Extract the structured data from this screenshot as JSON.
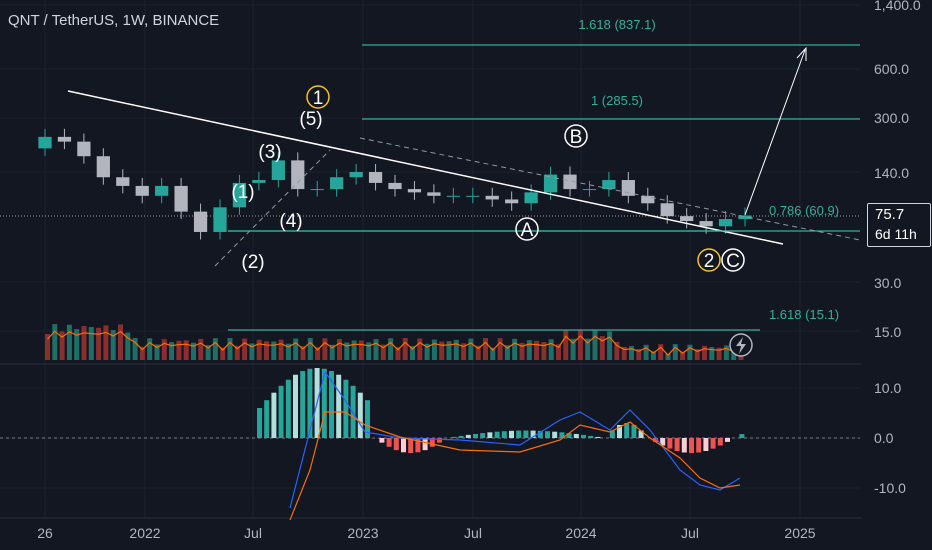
{
  "header": {
    "title": "QNT / TetherUS, 1W, BINANCE"
  },
  "price_box": {
    "price": "75.7",
    "countdown": "6d 11h"
  },
  "colors": {
    "up": "#26a69a",
    "down": "#ef5350",
    "bg": "#131722",
    "fib": "#2bb39a",
    "trend": "#ffffff",
    "circle1": "#f5c518",
    "ema": "#ff6d00",
    "macd": "#2962ff",
    "signal": "#ff6d00"
  },
  "icons": [
    "lightning-icon"
  ],
  "chart_data": {
    "type": "candlestick",
    "symbol": "QNT / TetherUS",
    "interval": "1W",
    "exchange": "BINANCE",
    "x_ticks": [
      "26",
      "2022",
      "Jul",
      "2023",
      "Jul",
      "2024",
      "Jul",
      "2025"
    ],
    "price_axis": {
      "scale": "log",
      "ticks": [
        "1,400.0",
        "600.0",
        "300.0",
        "140.0"
      ]
    },
    "volume_axis": {
      "ticks": [
        "30.0",
        "15.0"
      ]
    },
    "macd_axis": {
      "ticks": [
        "10.0",
        "0.0",
        "-10.0"
      ]
    },
    "last_price": 75.7,
    "fib_levels": [
      {
        "label": "1.618 (837.1)",
        "value": 837.1
      },
      {
        "label": "1 (285.5)",
        "value": 285.5
      },
      {
        "label": "0.786 (60.9)",
        "value": 60.9
      }
    ],
    "volume_fib": {
      "label": "1.618 (15.1)",
      "value": 15.1
    },
    "wave_labels": [
      {
        "label": "1",
        "circled": true,
        "color": "yellow"
      },
      {
        "label": "(1)"
      },
      {
        "label": "(2)"
      },
      {
        "label": "(3)"
      },
      {
        "label": "(4)"
      },
      {
        "label": "(5)"
      },
      {
        "label": "A",
        "circled": true
      },
      {
        "label": "B",
        "circled": true
      },
      {
        "label": "2",
        "circled": true,
        "color": "yellow"
      },
      {
        "label": "C",
        "circled": true
      }
    ],
    "price_series": [
      {
        "x": "2021-10",
        "close": 230
      },
      {
        "x": "2021-11",
        "close": 215
      },
      {
        "x": "2021-12",
        "close": 175
      },
      {
        "x": "2022-01",
        "close": 130
      },
      {
        "x": "2022-02",
        "close": 115
      },
      {
        "x": "2022-03",
        "close": 100
      },
      {
        "x": "2022-04",
        "close": 115
      },
      {
        "x": "2022-05",
        "close": 80
      },
      {
        "x": "2022-06",
        "close": 60
      },
      {
        "x": "2022-07",
        "close": 85
      },
      {
        "x": "2022-08",
        "close": 120
      },
      {
        "x": "2022-09",
        "close": 125
      },
      {
        "x": "2022-10",
        "close": 165
      },
      {
        "x": "2022-11",
        "close": 110
      },
      {
        "x": "2022-12",
        "close": 110
      },
      {
        "x": "2023-01",
        "close": 130
      },
      {
        "x": "2023-02",
        "close": 140
      },
      {
        "x": "2023-03",
        "close": 120
      },
      {
        "x": "2023-04",
        "close": 110
      },
      {
        "x": "2023-05",
        "close": 105
      },
      {
        "x": "2023-06",
        "close": 100
      },
      {
        "x": "2023-07",
        "close": 100
      },
      {
        "x": "2023-08",
        "close": 100
      },
      {
        "x": "2023-09",
        "close": 95
      },
      {
        "x": "2023-10",
        "close": 90
      },
      {
        "x": "2023-11",
        "close": 105
      },
      {
        "x": "2023-12",
        "close": 135
      },
      {
        "x": "2024-01",
        "close": 110
      },
      {
        "x": "2024-02",
        "close": 110
      },
      {
        "x": "2024-03",
        "close": 125
      },
      {
        "x": "2024-04",
        "close": 100
      },
      {
        "x": "2024-05",
        "close": 90
      },
      {
        "x": "2024-06",
        "close": 75
      },
      {
        "x": "2024-07",
        "close": 70
      },
      {
        "x": "2024-08",
        "close": 65
      },
      {
        "x": "2024-09",
        "close": 72
      },
      {
        "x": "2024-10",
        "close": 75.7
      }
    ]
  }
}
